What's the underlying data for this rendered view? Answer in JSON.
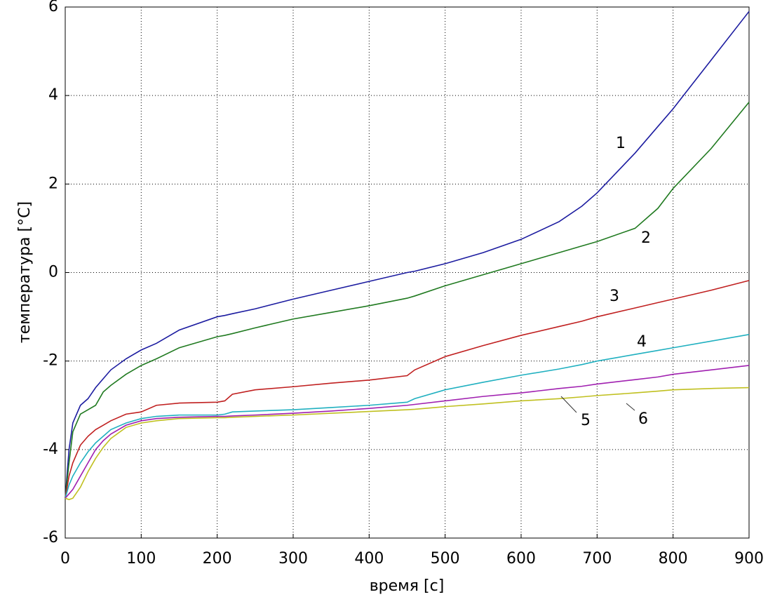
{
  "chart_data": {
    "type": "line",
    "xlabel": "время [с]",
    "ylabel": "температура [°C]",
    "x": [
      0,
      5,
      10,
      20,
      30,
      40,
      50,
      60,
      80,
      100,
      120,
      150,
      200,
      210,
      220,
      250,
      300,
      350,
      400,
      450,
      460,
      500,
      550,
      600,
      650,
      680,
      700,
      750,
      780,
      800,
      850,
      900
    ],
    "series": [
      {
        "name": "1",
        "color": "#1c1ca0",
        "values": [
          -5.1,
          -4.0,
          -3.4,
          -3.0,
          -2.85,
          -2.6,
          -2.4,
          -2.2,
          -1.95,
          -1.75,
          -1.6,
          -1.3,
          -1.0,
          -0.97,
          -0.93,
          -0.82,
          -0.6,
          -0.4,
          -0.2,
          0.0,
          0.03,
          0.2,
          0.45,
          0.75,
          1.15,
          1.5,
          1.8,
          2.7,
          3.3,
          3.7,
          4.8,
          5.9
        ]
      },
      {
        "name": "2",
        "color": "#207a20",
        "values": [
          -5.1,
          -4.3,
          -3.6,
          -3.2,
          -3.1,
          -3.0,
          -2.7,
          -2.55,
          -2.3,
          -2.1,
          -1.95,
          -1.7,
          -1.45,
          -1.42,
          -1.38,
          -1.25,
          -1.05,
          -0.9,
          -0.75,
          -0.58,
          -0.53,
          -0.3,
          -0.05,
          0.2,
          0.45,
          0.6,
          0.7,
          1.0,
          1.45,
          1.9,
          2.8,
          3.85
        ]
      },
      {
        "name": "3",
        "color": "#c02020",
        "values": [
          -5.1,
          -4.6,
          -4.3,
          -3.9,
          -3.7,
          -3.55,
          -3.45,
          -3.35,
          -3.2,
          -3.15,
          -3.0,
          -2.95,
          -2.93,
          -2.9,
          -2.75,
          -2.65,
          -2.58,
          -2.5,
          -2.43,
          -2.33,
          -2.2,
          -1.9,
          -1.65,
          -1.42,
          -1.22,
          -1.1,
          -1.0,
          -0.8,
          -0.68,
          -0.6,
          -0.4,
          -0.18
        ]
      },
      {
        "name": "4",
        "color": "#20b0c0",
        "values": [
          -5.1,
          -4.8,
          -4.6,
          -4.3,
          -4.05,
          -3.85,
          -3.7,
          -3.55,
          -3.4,
          -3.3,
          -3.25,
          -3.22,
          -3.22,
          -3.2,
          -3.15,
          -3.13,
          -3.1,
          -3.05,
          -3.0,
          -2.93,
          -2.85,
          -2.65,
          -2.48,
          -2.32,
          -2.18,
          -2.08,
          -2.0,
          -1.85,
          -1.76,
          -1.7,
          -1.55,
          -1.4
        ]
      },
      {
        "name": "5",
        "color": "#a020b0",
        "values": [
          -5.1,
          -5.0,
          -4.9,
          -4.6,
          -4.3,
          -4.0,
          -3.8,
          -3.65,
          -3.45,
          -3.35,
          -3.3,
          -3.27,
          -3.25,
          -3.25,
          -3.24,
          -3.22,
          -3.18,
          -3.13,
          -3.07,
          -3.0,
          -2.98,
          -2.9,
          -2.8,
          -2.72,
          -2.62,
          -2.57,
          -2.52,
          -2.42,
          -2.36,
          -2.3,
          -2.2,
          -2.1
        ]
      },
      {
        "name": "6",
        "color": "#c0c020",
        "values": [
          -5.1,
          -5.13,
          -5.1,
          -4.85,
          -4.5,
          -4.2,
          -3.95,
          -3.75,
          -3.5,
          -3.4,
          -3.35,
          -3.3,
          -3.28,
          -3.28,
          -3.27,
          -3.25,
          -3.22,
          -3.18,
          -3.14,
          -3.1,
          -3.09,
          -3.03,
          -2.97,
          -2.9,
          -2.85,
          -2.81,
          -2.78,
          -2.72,
          -2.68,
          -2.65,
          -2.62,
          -2.6
        ]
      }
    ],
    "xlim": [
      0,
      900
    ],
    "xticks": [
      0,
      100,
      200,
      300,
      400,
      500,
      600,
      700,
      800,
      900
    ],
    "ylim": [
      -6,
      6
    ],
    "yticks": [
      -6,
      -4,
      -2,
      0,
      2,
      4,
      6
    ],
    "grid": true
  }
}
